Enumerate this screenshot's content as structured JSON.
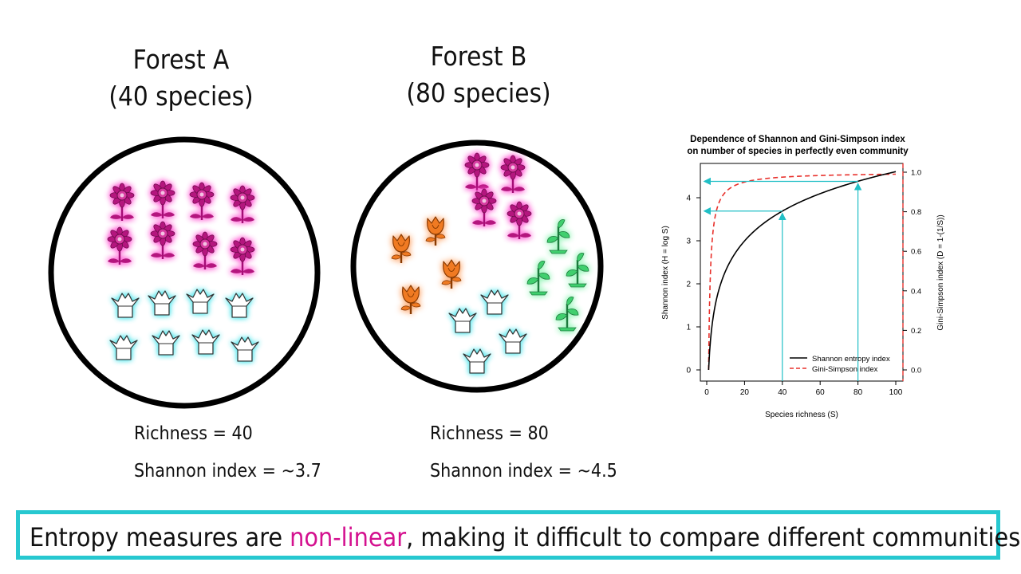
{
  "forest_a": {
    "title_line1": "Forest A",
    "title_line2": "(40 species)",
    "richness": "Richness = 40",
    "shannon": "Shannon index = ~3.7"
  },
  "forest_b": {
    "title_line1": "Forest B",
    "title_line2": "(80 species)",
    "richness": "Richness = 80",
    "shannon": "Shannon index = ~4.5"
  },
  "banner": {
    "before": "Entropy measures are ",
    "highlight": "non-linear",
    "after": ", making it difficult to compare different communities."
  },
  "colors": {
    "accent_border": "#27c8d0",
    "highlight": "#d4118f",
    "purple_flower": "#b4127e",
    "orange_flower": "#f07a22",
    "green_plant": "#3fcf6e",
    "white_tulip_glow": "#6fe6ec",
    "arrow": "#21bfc6",
    "shannon_line": "#000000",
    "gini_line": "#e8312c"
  },
  "icons": [
    "purple-flower-icon",
    "white-tulip-icon",
    "orange-rose-icon",
    "green-plant-icon"
  ],
  "chart_data": {
    "type": "line",
    "title": "Dependence of Shannon and Gini-Simpson index",
    "subtitle": "on number of species in perfectly even community",
    "xlabel": "Species richness (S)",
    "ylabel_left": "Shannon index (H = log S)",
    "ylabel_right": "Gini-Simpson index (D = 1-(1/S))",
    "xlim": [
      0,
      100
    ],
    "ylim_left": [
      0,
      4.6
    ],
    "ylim_right": [
      0,
      1.0
    ],
    "x_ticks": [
      "0",
      "20",
      "40",
      "60",
      "80",
      "100"
    ],
    "y_left_ticks": [
      "0",
      "1",
      "2",
      "3",
      "4"
    ],
    "y_right_ticks": [
      "0.0",
      "0.2",
      "0.4",
      "0.6",
      "0.8",
      "1.0"
    ],
    "series": [
      {
        "name": "Shannon entropy index",
        "axis": "left",
        "style": "solid",
        "formula": "log(S)",
        "x": [
          1,
          2,
          5,
          10,
          20,
          30,
          40,
          50,
          60,
          70,
          80,
          90,
          100
        ],
        "y": [
          0,
          0.69,
          1.61,
          2.3,
          3.0,
          3.4,
          3.69,
          3.91,
          4.09,
          4.25,
          4.38,
          4.5,
          4.61
        ]
      },
      {
        "name": "Gini-Simpson index",
        "axis": "right",
        "style": "dashed",
        "formula": "1-1/S",
        "x": [
          1,
          2,
          3,
          4,
          5,
          7,
          10,
          15,
          20,
          30,
          40,
          60,
          80,
          100
        ],
        "y": [
          0,
          0.5,
          0.667,
          0.75,
          0.8,
          0.857,
          0.9,
          0.933,
          0.95,
          0.967,
          0.975,
          0.983,
          0.9875,
          0.99
        ]
      }
    ],
    "annotations": [
      {
        "type": "arrow",
        "x": 40,
        "y": 3.69,
        "label": ""
      },
      {
        "type": "arrow",
        "x": 80,
        "y": 4.38,
        "label": ""
      }
    ],
    "legend_position": "bottom-right",
    "grid": false
  }
}
